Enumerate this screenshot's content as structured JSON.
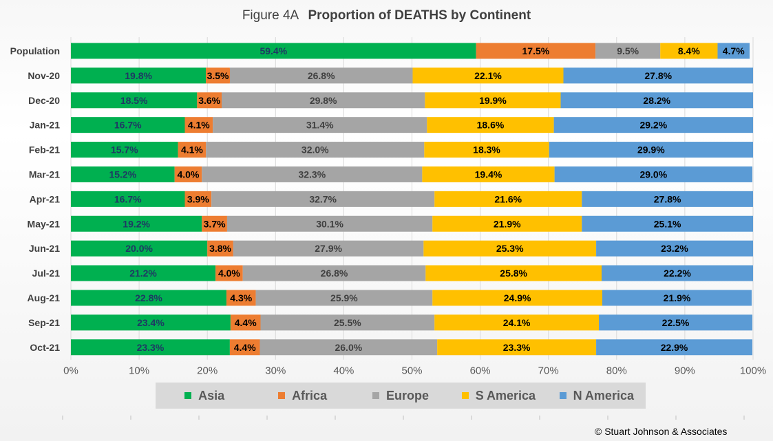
{
  "title": {
    "prefix": "Figure  4A",
    "main": "Proportion of DEATHS by Continent"
  },
  "credit": "© Stuart Johnson & Associates",
  "chart_data": {
    "type": "bar",
    "orientation": "horizontal",
    "stacked": "100%",
    "title": "Figure  4A  Proportion of DEATHS by Continent",
    "categories": [
      "Population",
      "Nov-20",
      "Dec-20",
      "Jan-21",
      "Feb-21",
      "Mar-21",
      "Apr-21",
      "May-21",
      "Jun-21",
      "Jul-21",
      "Aug-21",
      "Sep-21",
      "Oct-21"
    ],
    "series": [
      {
        "name": "Asia",
        "color": "#00b050",
        "label_color": "#1f3864",
        "values": [
          59.4,
          19.8,
          18.5,
          16.7,
          15.7,
          15.2,
          16.7,
          19.2,
          20.0,
          21.2,
          22.8,
          23.4,
          23.3
        ]
      },
      {
        "name": "Africa",
        "color": "#ed7d31",
        "label_color": "#000000",
        "values": [
          17.5,
          3.5,
          3.6,
          4.1,
          4.1,
          4.0,
          3.9,
          3.7,
          3.8,
          4.0,
          4.3,
          4.4,
          4.4
        ]
      },
      {
        "name": "Europe",
        "color": "#a5a5a5",
        "label_color": "#404040",
        "values": [
          9.5,
          26.8,
          29.8,
          31.4,
          32.0,
          32.3,
          32.7,
          30.1,
          27.9,
          26.8,
          25.9,
          25.5,
          26.0
        ]
      },
      {
        "name": "S America",
        "color": "#ffc000",
        "label_color": "#000000",
        "values": [
          8.4,
          22.1,
          19.9,
          18.6,
          18.3,
          19.4,
          21.6,
          21.9,
          25.3,
          25.8,
          24.9,
          24.1,
          23.3
        ]
      },
      {
        "name": "N America",
        "color": "#5b9bd5",
        "label_color": "#000000",
        "values": [
          4.7,
          27.8,
          28.2,
          29.2,
          29.9,
          29.0,
          27.8,
          25.1,
          23.2,
          22.2,
          21.9,
          22.5,
          22.9
        ]
      }
    ],
    "xlim": [
      0,
      100
    ],
    "xticks": [
      "0%",
      "10%",
      "20%",
      "30%",
      "40%",
      "50%",
      "60%",
      "70%",
      "80%",
      "90%",
      "100%"
    ],
    "xlabel": "",
    "ylabel": "",
    "grid": true,
    "legend": "bottom"
  }
}
